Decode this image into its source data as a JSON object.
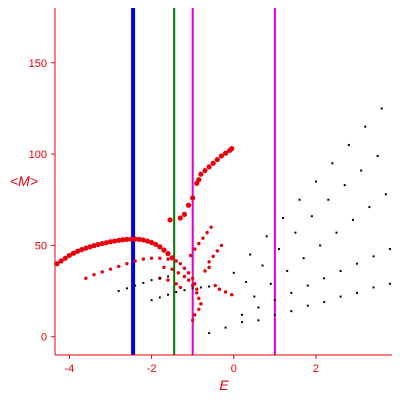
{
  "chart_data": {
    "type": "scatter",
    "title": "",
    "xlabel": "E",
    "ylabel": "<M>",
    "xlim": [
      -4.35,
      3.85
    ],
    "ylim": [
      -10,
      180
    ],
    "xticks": [
      -4,
      -2,
      0,
      2
    ],
    "xtick_labels": [
      "-4",
      "-2",
      "0",
      "2"
    ],
    "yticks": [
      0,
      50,
      100,
      150
    ],
    "ytick_labels": [
      "0",
      "50",
      "100",
      "150"
    ],
    "grid": false,
    "legend": "none",
    "colors": {
      "axes": "#e8000b",
      "highlight": "#e8000b",
      "background_points": "#000000",
      "vline_blue": "#0000ee",
      "vline_green": "#007700",
      "vline_magenta": "#dd00dd"
    },
    "vertical_lines": [
      {
        "x": -2.45,
        "color": "#0000ee"
      },
      {
        "x": -1.45,
        "color": "#007700"
      },
      {
        "x": -1.0,
        "color": "#dd00dd"
      },
      {
        "x": 1.0,
        "color": "#dd00dd"
      }
    ],
    "series": [
      {
        "color": "#e8000b",
        "size": "large",
        "points": [
          [
            -4.3,
            40
          ],
          [
            -4.2,
            41.5
          ],
          [
            -4.1,
            43
          ],
          [
            -4.0,
            44.5
          ],
          [
            -3.9,
            45.7
          ],
          [
            -3.8,
            46.8
          ],
          [
            -3.7,
            47.7
          ],
          [
            -3.6,
            48.5
          ],
          [
            -3.5,
            49.2
          ],
          [
            -3.4,
            49.9
          ],
          [
            -3.3,
            50.5
          ],
          [
            -3.2,
            51
          ],
          [
            -3.1,
            51.5
          ],
          [
            -3.0,
            52
          ],
          [
            -2.9,
            52.4
          ],
          [
            -2.8,
            52.8
          ],
          [
            -2.7,
            53.1
          ],
          [
            -2.6,
            53.3
          ],
          [
            -2.5,
            53.4
          ],
          [
            -2.4,
            53.5
          ],
          [
            -2.3,
            53.3
          ],
          [
            -2.2,
            53
          ],
          [
            -2.1,
            52.4
          ],
          [
            -2.0,
            51.6
          ],
          [
            -1.9,
            50.6
          ],
          [
            -1.8,
            49.2
          ],
          [
            -1.7,
            47.5
          ],
          [
            -1.6,
            45.5
          ],
          [
            -1.5,
            43.2
          ],
          [
            -1.55,
            64
          ],
          [
            -1.3,
            65
          ],
          [
            -1.2,
            67
          ],
          [
            -1.1,
            72
          ],
          [
            -1.0,
            76
          ],
          [
            -0.9,
            84
          ],
          [
            -0.85,
            86
          ],
          [
            -0.8,
            89
          ],
          [
            -0.7,
            91
          ],
          [
            -0.6,
            93
          ],
          [
            -0.5,
            95
          ],
          [
            -0.4,
            97
          ],
          [
            -0.3,
            99
          ],
          [
            -0.2,
            100.5
          ],
          [
            -0.1,
            102
          ],
          [
            -0.05,
            103
          ]
        ]
      },
      {
        "color": "#e8000b",
        "size": "medium",
        "points": [
          [
            -3.6,
            32
          ],
          [
            -3.4,
            34
          ],
          [
            -3.2,
            35.5
          ],
          [
            -3.0,
            37
          ],
          [
            -2.8,
            38.5
          ],
          [
            -2.6,
            40
          ],
          [
            -2.4,
            41.5
          ],
          [
            -2.2,
            42.5
          ],
          [
            -2.0,
            43
          ],
          [
            -1.8,
            43
          ],
          [
            -1.6,
            42.5
          ],
          [
            -1.4,
            41.5
          ],
          [
            -1.3,
            40
          ],
          [
            -1.2,
            37.5
          ],
          [
            -1.1,
            35
          ],
          [
            -1.0,
            32
          ],
          [
            -0.95,
            29
          ],
          [
            -0.9,
            26
          ],
          [
            -1.7,
            38
          ],
          [
            -1.5,
            37
          ],
          [
            -1.35,
            35
          ],
          [
            -1.2,
            33
          ],
          [
            -1.1,
            31
          ],
          [
            -1.0,
            28
          ],
          [
            -0.9,
            24
          ],
          [
            -0.85,
            21
          ],
          [
            -0.8,
            18
          ],
          [
            -1.05,
            44.5
          ],
          [
            -0.95,
            48
          ],
          [
            -0.85,
            51
          ],
          [
            -0.75,
            54
          ],
          [
            -0.65,
            57
          ],
          [
            -0.55,
            60
          ],
          [
            -1.0,
            9
          ],
          [
            -0.95,
            12
          ],
          [
            -0.85,
            15
          ],
          [
            -0.6,
            41
          ],
          [
            -0.5,
            44
          ],
          [
            -0.4,
            47
          ],
          [
            -0.3,
            50
          ],
          [
            -0.7,
            36
          ],
          [
            -0.6,
            38
          ],
          [
            -0.45,
            28
          ],
          [
            -0.35,
            26
          ],
          [
            -0.2,
            24.5
          ],
          [
            -0.05,
            23
          ],
          [
            -1.3,
            27
          ],
          [
            -1.4,
            29
          ],
          [
            -1.6,
            31
          ],
          [
            -1.8,
            32
          ]
        ]
      },
      {
        "color": "#000000",
        "size": "small",
        "points": [
          [
            -2.8,
            25
          ],
          [
            -2.6,
            26.5
          ],
          [
            -2.4,
            28
          ],
          [
            -2.2,
            29.5
          ],
          [
            -2.0,
            31
          ],
          [
            -1.8,
            32
          ],
          [
            -1.6,
            33
          ],
          [
            -2.0,
            20
          ],
          [
            -1.8,
            21.5
          ],
          [
            -1.6,
            23
          ],
          [
            -1.4,
            24.5
          ],
          [
            -1.2,
            25.5
          ],
          [
            -1.0,
            26.5
          ],
          [
            -0.8,
            27
          ],
          [
            -0.6,
            27.5
          ],
          [
            0.0,
            35
          ],
          [
            0.4,
            45
          ],
          [
            0.8,
            55
          ],
          [
            1.2,
            65
          ],
          [
            1.6,
            75
          ],
          [
            2.0,
            85
          ],
          [
            2.4,
            95
          ],
          [
            2.8,
            105
          ],
          [
            3.2,
            115
          ],
          [
            3.6,
            125
          ],
          [
            0.3,
            30
          ],
          [
            0.7,
            39
          ],
          [
            1.1,
            48
          ],
          [
            1.5,
            57
          ],
          [
            1.9,
            66
          ],
          [
            2.3,
            75
          ],
          [
            2.7,
            83
          ],
          [
            3.1,
            91
          ],
          [
            3.5,
            99
          ],
          [
            0.5,
            22
          ],
          [
            0.9,
            29
          ],
          [
            1.3,
            36
          ],
          [
            1.7,
            43
          ],
          [
            2.1,
            50
          ],
          [
            2.5,
            57
          ],
          [
            2.9,
            64
          ],
          [
            3.3,
            71
          ],
          [
            3.7,
            78
          ],
          [
            0.2,
            12
          ],
          [
            0.6,
            16
          ],
          [
            1.0,
            20
          ],
          [
            1.4,
            24
          ],
          [
            1.8,
            28
          ],
          [
            2.2,
            32
          ],
          [
            2.6,
            36
          ],
          [
            3.0,
            40
          ],
          [
            3.4,
            44
          ],
          [
            3.8,
            48
          ],
          [
            -0.6,
            2
          ],
          [
            -0.2,
            5
          ],
          [
            0.2,
            8
          ],
          [
            0.6,
            9
          ],
          [
            1.0,
            12
          ],
          [
            1.4,
            14
          ],
          [
            1.8,
            17
          ],
          [
            2.2,
            19
          ],
          [
            2.6,
            22
          ],
          [
            3.0,
            24
          ],
          [
            3.4,
            27
          ],
          [
            3.8,
            29
          ]
        ]
      }
    ]
  }
}
